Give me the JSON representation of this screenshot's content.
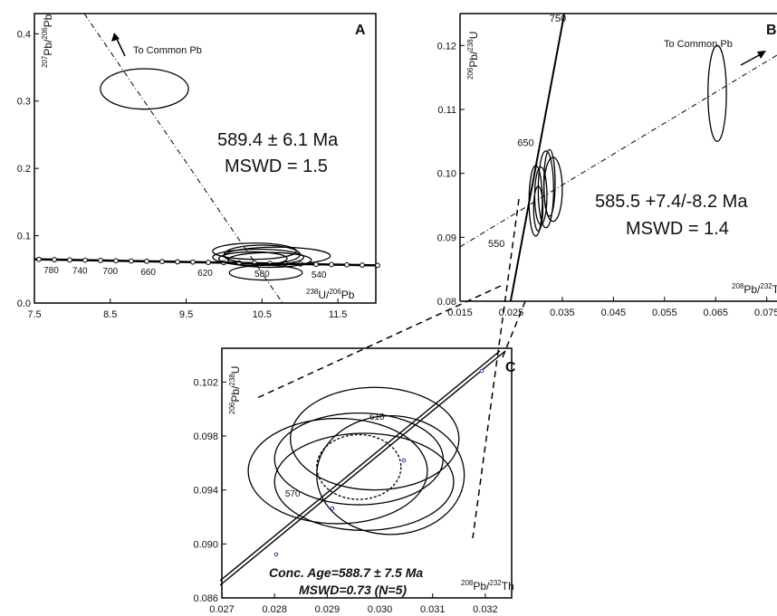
{
  "chart_data": [
    {
      "panel": "A",
      "type": "scatter",
      "xlabel_parts": {
        "sup1": "238",
        "base1": "U/",
        "sup2": "206",
        "base2": "Pb"
      },
      "ylabel_parts": {
        "sup1": "207",
        "base1": "Pb/",
        "sup2": "206",
        "base2": "Pb"
      },
      "xlim": [
        7.5,
        12.0
      ],
      "ylim": [
        0.0,
        0.43
      ],
      "xticks": [
        "7.5",
        "8.5",
        "9.5",
        "10.5",
        "11.5"
      ],
      "yticks": [
        "0.0",
        "0.1",
        "0.2",
        "0.3",
        "0.4"
      ],
      "age_text": "589.4 ± 6.1 Ma",
      "mswd_text": "MSWD = 1.5",
      "common_pb_label": "To Common Pb",
      "concordia_age_labels": [
        {
          "text": "780",
          "x": 7.72
        },
        {
          "text": "740",
          "x": 8.1
        },
        {
          "text": "700",
          "x": 8.5
        },
        {
          "text": "660",
          "x": 9.0
        },
        {
          "text": "620",
          "x": 9.75
        },
        {
          "text": "580",
          "x": 10.5
        },
        {
          "text": "540",
          "x": 11.25
        }
      ],
      "ellipses": [
        {
          "cx": 8.95,
          "cy": 0.318,
          "rx": 0.58,
          "ry": 0.03
        },
        {
          "cx": 10.4,
          "cy": 0.077,
          "rx": 0.55,
          "ry": 0.012
        },
        {
          "cx": 10.5,
          "cy": 0.072,
          "rx": 0.5,
          "ry": 0.014
        },
        {
          "cx": 10.45,
          "cy": 0.068,
          "rx": 0.6,
          "ry": 0.012
        },
        {
          "cx": 10.6,
          "cy": 0.064,
          "rx": 0.55,
          "ry": 0.011
        },
        {
          "cx": 10.38,
          "cy": 0.066,
          "rx": 0.45,
          "ry": 0.01
        },
        {
          "cx": 10.7,
          "cy": 0.07,
          "rx": 0.7,
          "ry": 0.013
        },
        {
          "cx": 10.55,
          "cy": 0.045,
          "rx": 0.48,
          "ry": 0.011
        }
      ]
    },
    {
      "panel": "B",
      "type": "scatter",
      "xlabel_parts": {
        "sup1": "208",
        "base1": "Pb/",
        "sup2": "232",
        "base2": "Th"
      },
      "ylabel_parts": {
        "sup1": "206",
        "base1": "Pb/",
        "sup2": "238",
        "base2": "U"
      },
      "xlim": [
        0.015,
        0.077
      ],
      "ylim": [
        0.08,
        0.125
      ],
      "xticks": [
        "0.015",
        "0.025",
        "0.035",
        "0.045",
        "0.055",
        "0.065",
        "0.075"
      ],
      "yticks": [
        "0.08",
        "0.09",
        "0.10",
        "0.11",
        "0.12"
      ],
      "age_text": "585.5 +7.4/-8.2 Ma",
      "mswd_text": "MSWD = 1.4",
      "common_pb_label": "To Common Pb",
      "concordia_age_labels": [
        {
          "text": "750",
          "x": 0.0325,
          "y": 0.1237
        },
        {
          "text": "650",
          "x": 0.0262,
          "y": 0.1043
        },
        {
          "text": "550",
          "x": 0.0205,
          "y": 0.0885
        }
      ],
      "ellipses": [
        {
          "cx": 0.0298,
          "cy": 0.0957,
          "rx": 0.0013,
          "ry": 0.0055
        },
        {
          "cx": 0.0308,
          "cy": 0.0965,
          "rx": 0.0012,
          "ry": 0.0045
        },
        {
          "cx": 0.0318,
          "cy": 0.0975,
          "rx": 0.0015,
          "ry": 0.006
        },
        {
          "cx": 0.0325,
          "cy": 0.0985,
          "rx": 0.0011,
          "ry": 0.0052
        },
        {
          "cx": 0.0332,
          "cy": 0.0975,
          "rx": 0.0018,
          "ry": 0.005
        },
        {
          "cx": 0.0303,
          "cy": 0.0945,
          "rx": 0.0009,
          "ry": 0.0035
        },
        {
          "cx": 0.0653,
          "cy": 0.1125,
          "rx": 0.0018,
          "ry": 0.0075
        }
      ]
    },
    {
      "panel": "C",
      "type": "scatter",
      "xlabel_parts": {
        "sup1": "208",
        "base1": "Pb/",
        "sup2": "232",
        "base2": "Th"
      },
      "ylabel_parts": {
        "sup1": "206",
        "base1": "Pb/",
        "sup2": "238",
        "base2": "U"
      },
      "xlim": [
        0.027,
        0.0325
      ],
      "ylim": [
        0.086,
        0.1045
      ],
      "xticks": [
        "0.027",
        "0.028",
        "0.029",
        "0.030",
        "0.031",
        "0.032"
      ],
      "yticks": [
        "0.086",
        "0.090",
        "0.094",
        "0.098",
        "0.102"
      ],
      "age_text": "Conc. Age=588.7 ± 7.5 Ma",
      "mswd_text": "MSWD=0.73 (N=5)",
      "concordia_age_labels": [
        {
          "text": "610",
          "x": 0.0298,
          "y": 0.0992
        },
        {
          "text": "570",
          "x": 0.0282,
          "y": 0.0935
        }
      ],
      "ellipses": [
        {
          "cx": 0.0292,
          "cy": 0.0954,
          "rx": 0.0017,
          "ry": 0.0039,
          "dashed": false
        },
        {
          "cx": 0.0296,
          "cy": 0.0963,
          "rx": 0.0016,
          "ry": 0.0034,
          "dashed": false
        },
        {
          "cx": 0.0299,
          "cy": 0.0978,
          "rx": 0.0016,
          "ry": 0.0038,
          "dashed": false
        },
        {
          "cx": 0.0302,
          "cy": 0.0951,
          "rx": 0.0014,
          "ry": 0.0044,
          "dashed": false
        },
        {
          "cx": 0.0297,
          "cy": 0.0946,
          "rx": 0.0017,
          "ry": 0.0036,
          "dashed": false
        },
        {
          "cx": 0.0296,
          "cy": 0.0957,
          "rx": 0.0008,
          "ry": 0.0024,
          "dashed": true
        }
      ]
    }
  ],
  "panel_letters": {
    "a": "A",
    "b": "B",
    "c": "C"
  }
}
